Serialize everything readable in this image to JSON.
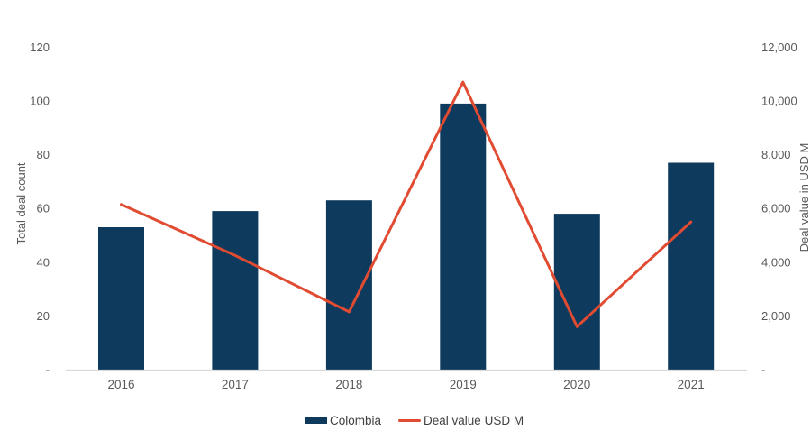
{
  "chart_data": {
    "type": "bar",
    "subtype": "combo-bar-line-dual-axis",
    "title": "",
    "xlabel": "",
    "ylabel_left": "Total deal count",
    "ylabel_right": "Deal value in USD M",
    "categories": [
      "2016",
      "2017",
      "2018",
      "2019",
      "2020",
      "2021"
    ],
    "series": [
      {
        "name": "Colombia",
        "kind": "bar",
        "axis": "left",
        "color": "#0E3A5D",
        "values": [
          53,
          59,
          63,
          99,
          58,
          77
        ]
      },
      {
        "name": "Deal value USD M",
        "kind": "line",
        "axis": "right",
        "color": "#E14B31",
        "values": [
          6150,
          4250,
          2150,
          10700,
          1600,
          5500
        ]
      }
    ],
    "yaxis_left": {
      "min": 0,
      "max": 120,
      "step": 20,
      "tick_labels": [
        "-",
        "20",
        "40",
        "60",
        "80",
        "100",
        "120"
      ]
    },
    "yaxis_right": {
      "min": 0,
      "max": 12000,
      "step": 2000,
      "tick_labels": [
        "-",
        "2,000",
        "4,000",
        "6,000",
        "8,000",
        "10,000",
        "12,000"
      ]
    },
    "grid": false,
    "legend_position": "bottom",
    "background": "#FFFFFF",
    "tick_text_color": "#595959",
    "axis_title_color": "#595959",
    "legend_text_color": "#404040",
    "axis_line_color": "#D9D9D9"
  }
}
